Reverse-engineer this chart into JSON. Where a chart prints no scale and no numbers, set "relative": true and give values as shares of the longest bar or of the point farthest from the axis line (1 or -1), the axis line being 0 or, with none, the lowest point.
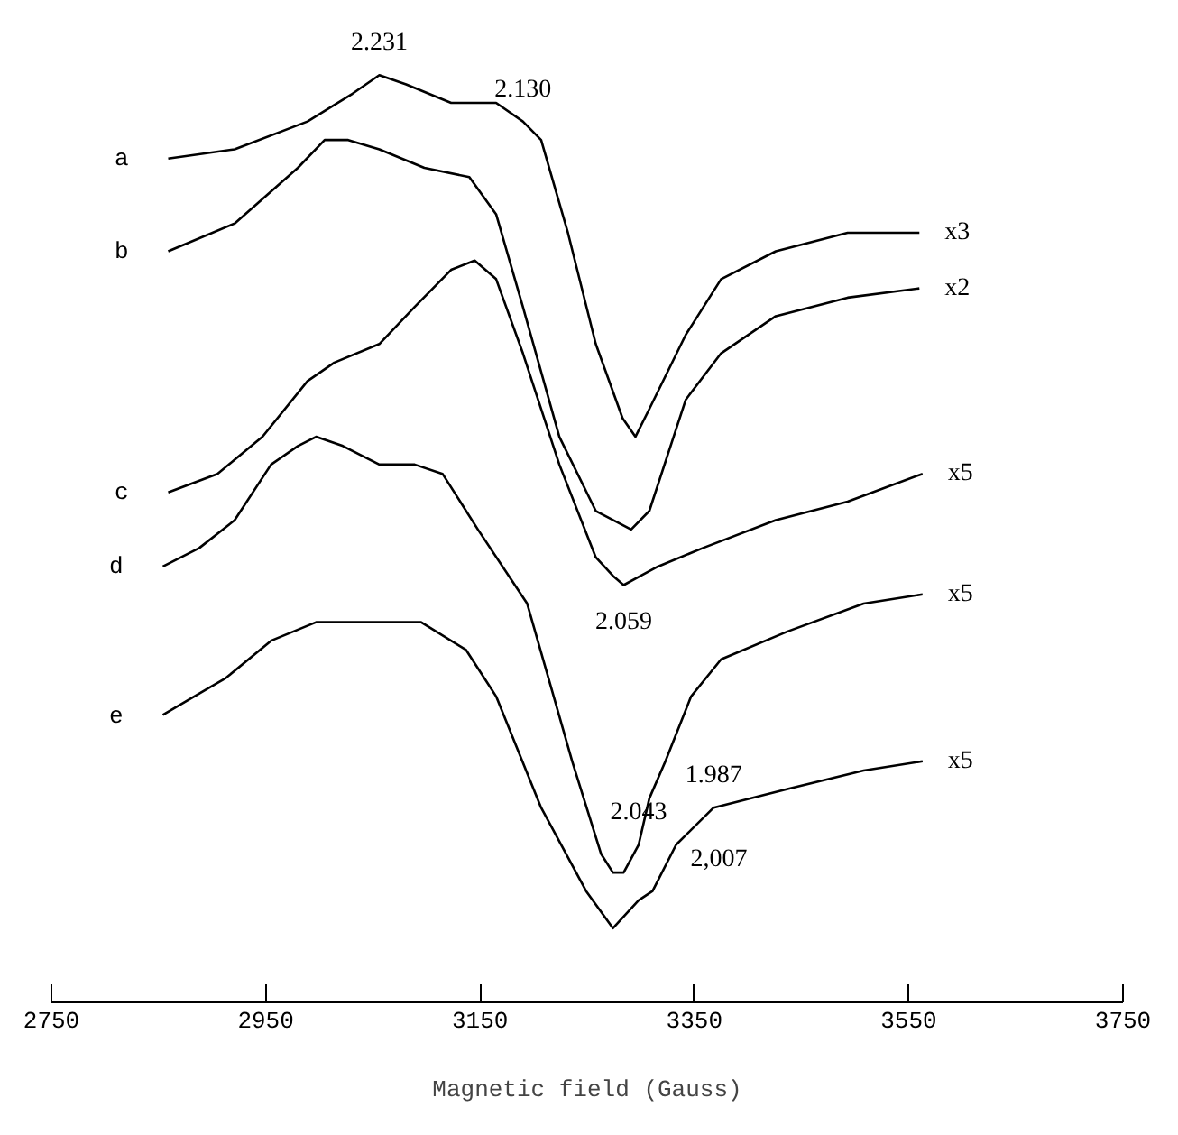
{
  "chart_data": {
    "type": "line",
    "relative": true,
    "xlabel": "Magnetic field (Gauss)",
    "xlim": [
      2750,
      3750
    ],
    "xticks": [
      2750,
      2950,
      3150,
      3350,
      3550,
      3750
    ],
    "grid": false,
    "color": "#000000",
    "series": [
      {
        "name": "a",
        "x": [
          2859,
          2921,
          2989,
          3031,
          3056,
          3081,
          3123,
          3165,
          3190,
          3207,
          3232,
          3258,
          3283,
          3295,
          3308,
          3342,
          3375,
          3426,
          3493,
          3560
        ],
        "values": [
          0.91,
          0.92,
          0.95,
          0.98,
          1.0,
          0.99,
          0.97,
          0.97,
          0.95,
          0.93,
          0.83,
          0.71,
          0.63,
          0.61,
          0.64,
          0.72,
          0.78,
          0.81,
          0.83,
          0.83
        ]
      },
      {
        "name": "b",
        "x": [
          2859,
          2921,
          2980,
          3005,
          3027,
          3056,
          3098,
          3140,
          3165,
          3190,
          3224,
          3258,
          3291,
          3308,
          3342,
          3375,
          3426,
          3493,
          3560
        ],
        "values": [
          0.81,
          0.84,
          0.9,
          0.93,
          0.93,
          0.92,
          0.9,
          0.89,
          0.85,
          0.75,
          0.61,
          0.53,
          0.51,
          0.53,
          0.65,
          0.7,
          0.74,
          0.76,
          0.77
        ]
      },
      {
        "name": "c",
        "x": [
          2859,
          2905,
          2947,
          2989,
          3014,
          3056,
          3089,
          3123,
          3145,
          3165,
          3190,
          3224,
          3258,
          3274,
          3284,
          3300,
          3316,
          3358,
          3426,
          3493,
          3563
        ],
        "values": [
          0.55,
          0.57,
          0.61,
          0.67,
          0.69,
          0.71,
          0.75,
          0.79,
          0.8,
          0.78,
          0.7,
          0.58,
          0.48,
          0.46,
          0.45,
          0.46,
          0.47,
          0.49,
          0.52,
          0.54,
          0.57
        ]
      },
      {
        "name": "d",
        "x": [
          2854,
          2888,
          2921,
          2955,
          2980,
          2997,
          3022,
          3056,
          3089,
          3115,
          3148,
          3194,
          3236,
          3263,
          3274,
          3284,
          3298,
          3308,
          3323,
          3347,
          3375,
          3437,
          3508,
          3563
        ],
        "values": [
          0.47,
          0.49,
          0.52,
          0.58,
          0.6,
          0.61,
          0.6,
          0.58,
          0.58,
          0.57,
          0.51,
          0.43,
          0.26,
          0.16,
          0.14,
          0.14,
          0.17,
          0.22,
          0.26,
          0.33,
          0.37,
          0.4,
          0.43,
          0.44
        ]
      },
      {
        "name": "e",
        "x": [
          2854,
          2913,
          2955,
          2997,
          3039,
          3095,
          3137,
          3165,
          3207,
          3249,
          3274,
          3298,
          3311,
          3333,
          3368,
          3437,
          3508,
          3563
        ],
        "values": [
          0.31,
          0.35,
          0.39,
          0.41,
          0.41,
          0.41,
          0.38,
          0.33,
          0.21,
          0.12,
          0.08,
          0.11,
          0.12,
          0.17,
          0.21,
          0.23,
          0.25,
          0.26
        ]
      }
    ],
    "annotations": [
      {
        "text": "2.231",
        "x": 3056,
        "y": 1.0
      },
      {
        "text": "2.130",
        "x": 3190,
        "y": 0.95
      },
      {
        "text": "2.059",
        "x": 3284,
        "y": 0.45
      },
      {
        "text": "2.043",
        "x": 3298,
        "y": 0.17
      },
      {
        "text": "2,007",
        "x": 3333,
        "y": 0.17
      },
      {
        "text": "1.987",
        "x": 3368,
        "y": 0.21
      },
      {
        "text": "x3",
        "x": 3560,
        "y": 0.83
      },
      {
        "text": "x2",
        "x": 3560,
        "y": 0.77
      },
      {
        "text": "x5",
        "x": 3563,
        "y": 0.57
      },
      {
        "text": "x5",
        "x": 3563,
        "y": 0.44
      },
      {
        "text": "x5",
        "x": 3563,
        "y": 0.26
      }
    ]
  }
}
